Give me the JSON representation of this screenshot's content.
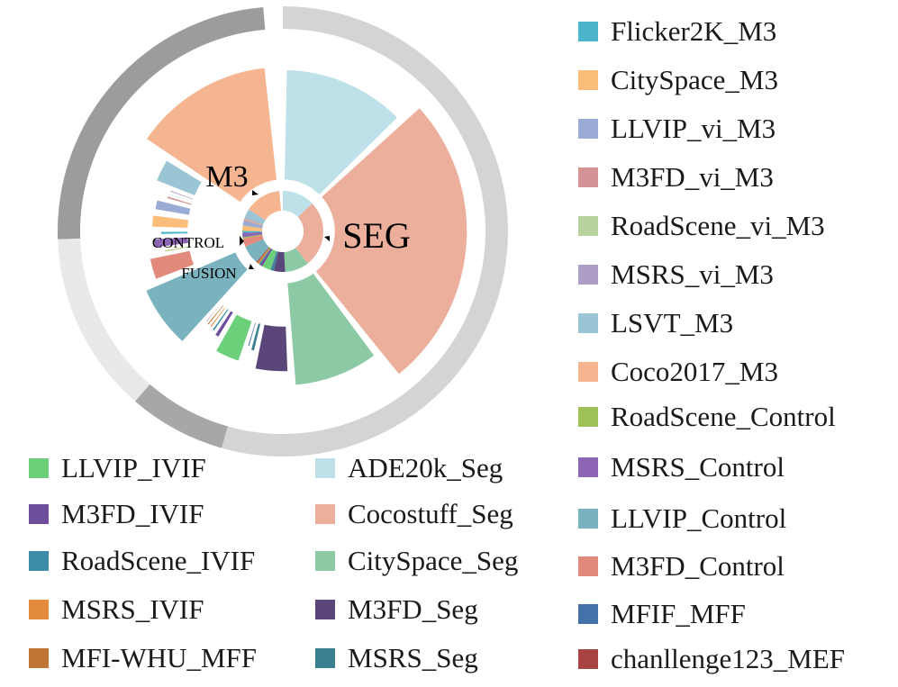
{
  "chart_data": {
    "type": "sunburst",
    "title": "",
    "center_labels": {
      "m3": "M3",
      "seg": "SEG",
      "control": "CONTROL",
      "fusion": "FUSION"
    },
    "groups": [
      {
        "name": "SEG",
        "color": "#d4d4d4",
        "items": [
          {
            "name": "ADE20k_Seg",
            "value": 10.7,
            "color": "#bde0e9"
          },
          {
            "name": "Cocostuff_Seg",
            "value": 22.0,
            "color": "#ebaf9c"
          },
          {
            "name": "CitySpace_Seg",
            "value": 7.9,
            "color": "#8ccaa5"
          },
          {
            "name": "M3FD_Seg",
            "value": 3.7,
            "color": "#5b4679"
          },
          {
            "name": "MSRS_Seg",
            "value": 0.7,
            "color": "#3a7f8f"
          }
        ]
      },
      {
        "name": "FUSION",
        "color": "#a7a7a7",
        "items": [
          {
            "name": "MFIF_MFF",
            "value": 0.4,
            "color": "#4472a8"
          },
          {
            "name": "LLVIP_IVIF",
            "value": 3.0,
            "color": "#6cd07a"
          },
          {
            "name": "M3FD_IVIF",
            "value": 0.8,
            "color": "#6e4d9c"
          },
          {
            "name": "RoadScene_IVIF",
            "value": 0.5,
            "color": "#3e8da8"
          },
          {
            "name": "MSRS_IVIF",
            "value": 0.4,
            "color": "#e38b3d"
          },
          {
            "name": "MFI-WHU_MFF",
            "value": 0.4,
            "color": "#c07535"
          },
          {
            "name": "chanllenge123_MEF",
            "value": 0.3,
            "color": "#a84444"
          }
        ]
      },
      {
        "name": "CONTROL",
        "color": "#e9e9e9",
        "items": [
          {
            "name": "LLVIP_Control",
            "value": 6.2,
            "color": "#7ab3bd"
          },
          {
            "name": "M3FD_Control",
            "value": 2.7,
            "color": "#e28b7d"
          },
          {
            "name": "RoadScene_Control",
            "value": 0.4,
            "color": "#9fc056"
          },
          {
            "name": "MSRS_Control",
            "value": 1.5,
            "color": "#8c65b4"
          }
        ]
      },
      {
        "name": "M3",
        "color": "#9b9c9c",
        "items": [
          {
            "name": "Flicker2K_M3",
            "value": 0.6,
            "color": "#4bb5cc"
          },
          {
            "name": "CitySpace_M3",
            "value": 1.8,
            "color": "#fbbd7a"
          },
          {
            "name": "LLVIP_vi_M3",
            "value": 1.6,
            "color": "#9aacd6"
          },
          {
            "name": "M3FD_vi_M3",
            "value": 0.5,
            "color": "#d49495"
          },
          {
            "name": "RoadScene_vi_M3",
            "value": 0.3,
            "color": "#b9d39f"
          },
          {
            "name": "MSRS_vi_M3",
            "value": 0.4,
            "color": "#ad9ec7"
          },
          {
            "name": "LSVT_M3",
            "value": 2.8,
            "color": "#99c5d4"
          },
          {
            "name": "Coco2017_M3",
            "value": 12.0,
            "color": "#f6b591"
          }
        ]
      }
    ]
  },
  "legend": {
    "right": [
      {
        "label": "Flicker2K_M3",
        "color": "#4bb5cc"
      },
      {
        "label": "CitySpace_M3",
        "color": "#fbbd7a"
      },
      {
        "label": "LLVIP_vi_M3",
        "color": "#9aacd6"
      },
      {
        "label": "M3FD_vi_M3",
        "color": "#d49495"
      },
      {
        "label": "RoadScene_vi_M3",
        "color": "#b9d39f"
      },
      {
        "label": "MSRS_vi_M3",
        "color": "#ad9ec7"
      },
      {
        "label": "LSVT_M3",
        "color": "#99c5d4"
      },
      {
        "label": "Coco2017_M3",
        "color": "#f6b591"
      },
      {
        "label": "RoadScene_Control",
        "color": "#9fc056"
      },
      {
        "label": "MSRS_Control",
        "color": "#8c65b4"
      },
      {
        "label": "LLVIP_Control",
        "color": "#7ab3bd"
      },
      {
        "label": "M3FD_Control",
        "color": "#e28b7d"
      },
      {
        "label": "MFIF_MFF",
        "color": "#4472a8"
      },
      {
        "label": "chanllenge123_MEF",
        "color": "#a84444"
      }
    ],
    "bottom_left": [
      {
        "label": "LLVIP_IVIF",
        "color": "#6cd07a"
      },
      {
        "label": "M3FD_IVIF",
        "color": "#6e4d9c"
      },
      {
        "label": "RoadScene_IVIF",
        "color": "#3e8da8"
      },
      {
        "label": "MSRS_IVIF",
        "color": "#e38b3d"
      },
      {
        "label": "MFI-WHU_MFF",
        "color": "#c07535"
      }
    ],
    "bottom_middle": [
      {
        "label": "ADE20k_Seg",
        "color": "#bde0e9"
      },
      {
        "label": "Cocostuff_Seg",
        "color": "#ebaf9c"
      },
      {
        "label": "CitySpace_Seg",
        "color": "#8ccaa5"
      },
      {
        "label": "M3FD_Seg",
        "color": "#5b4679"
      },
      {
        "label": "MSRS_Seg",
        "color": "#3a7f8f"
      }
    ]
  }
}
